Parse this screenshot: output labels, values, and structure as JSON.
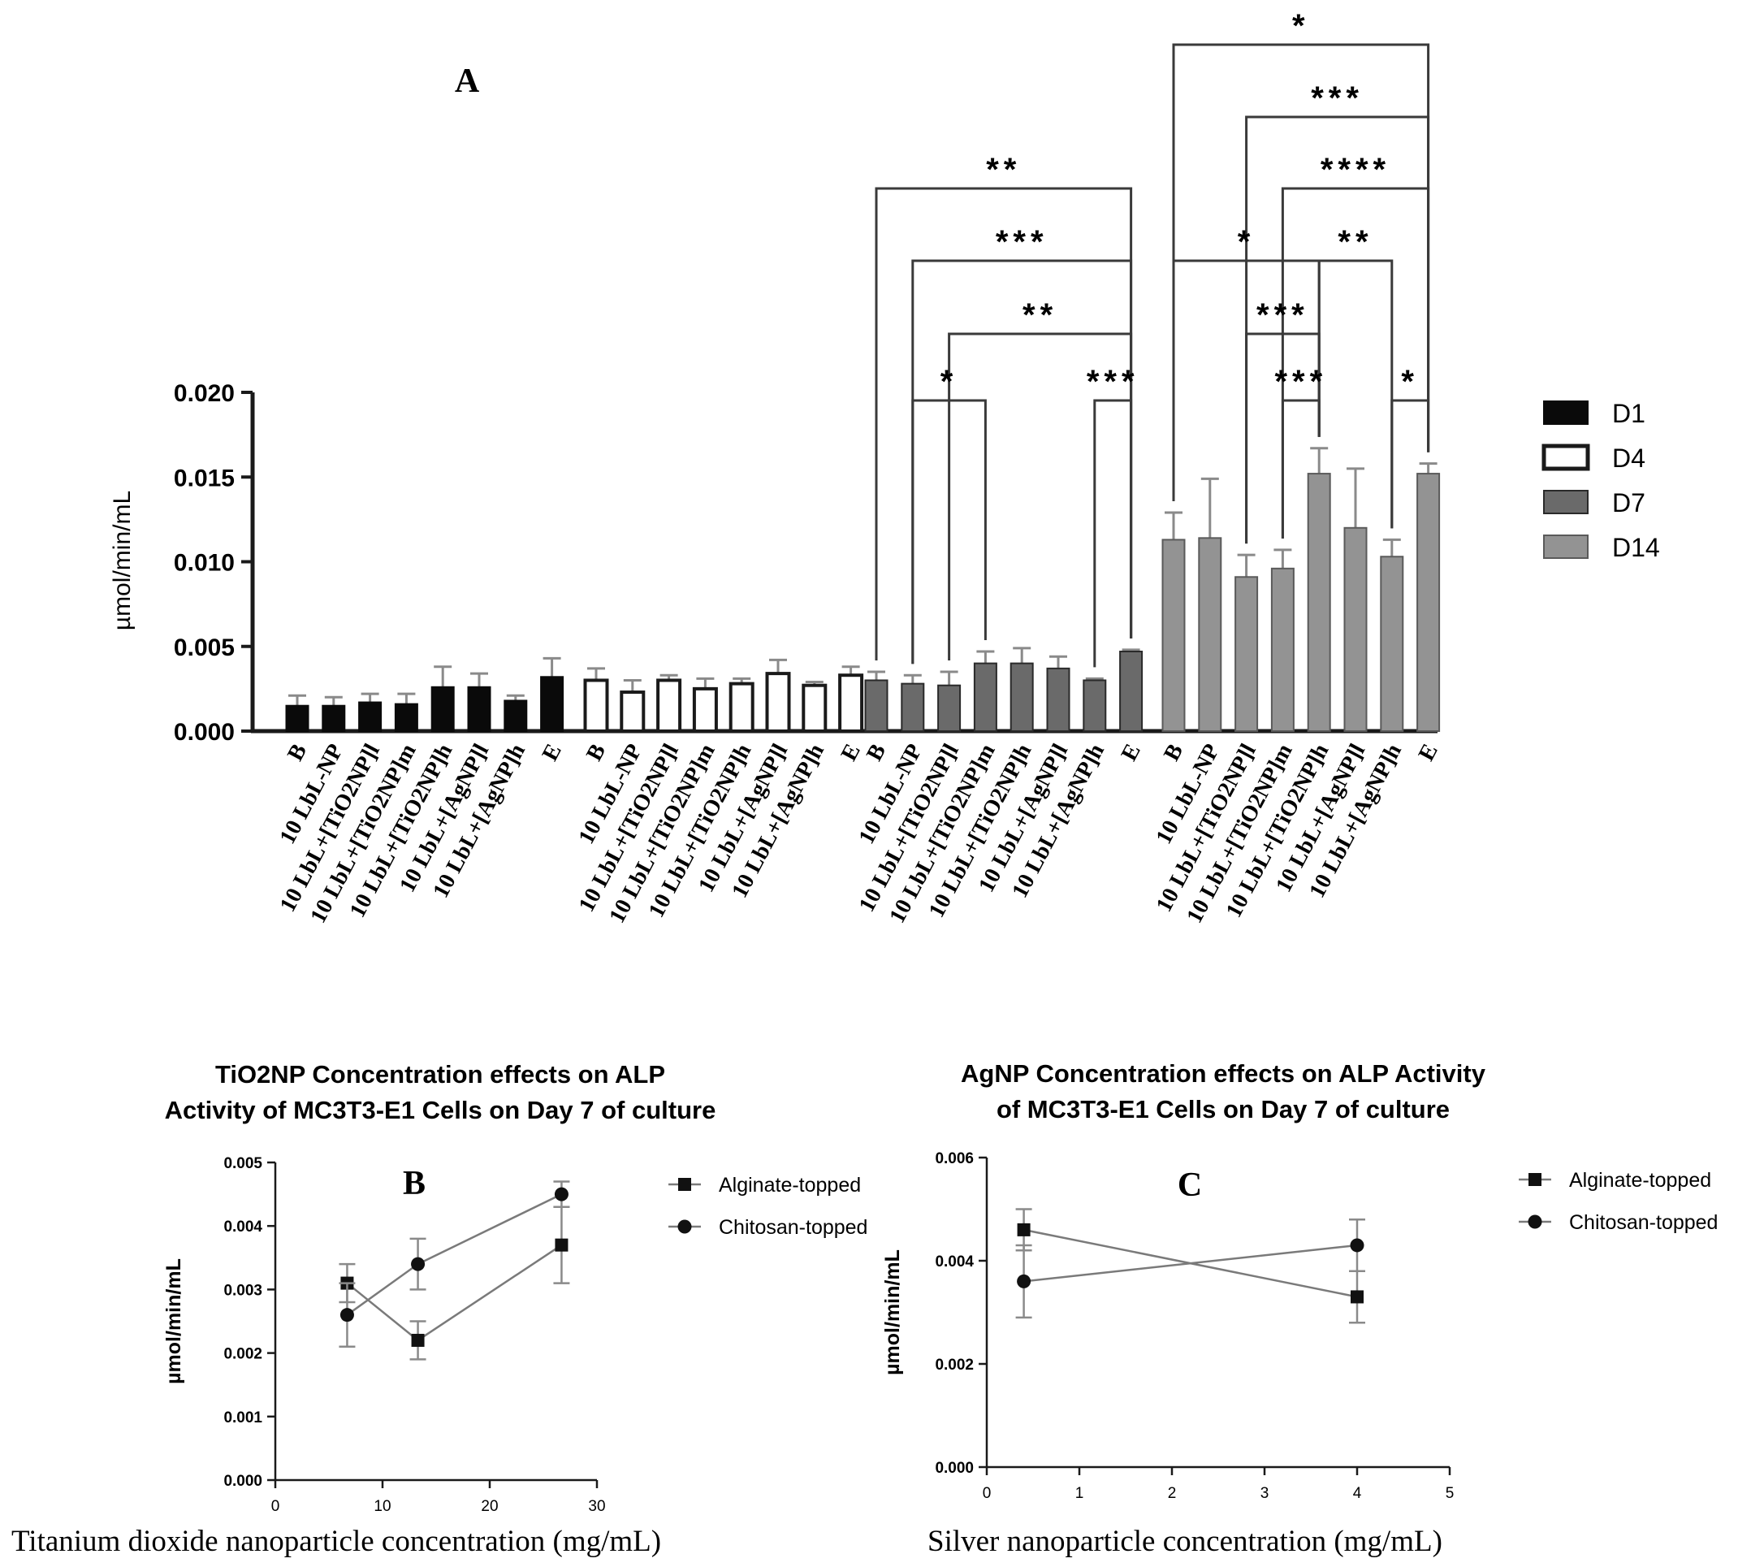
{
  "colors": {
    "d1": "#0a0a0a",
    "d4": "#ffffff",
    "d7": "#6a6a6a",
    "d14": "#939393",
    "axis": "#1a1a1a",
    "line": "#7a7a7a",
    "error": "#8a8a8a"
  },
  "chart_data": [
    {
      "id": "A",
      "type": "bar",
      "panel_label": "A",
      "ylabel": "µmol/min/mL",
      "ylim": [
        0,
        0.02
      ],
      "yticks": [
        "0.000",
        "0.005",
        "0.010",
        "0.015",
        "0.020"
      ],
      "ytick_values": [
        0,
        0.005,
        0.01,
        0.015,
        0.02
      ],
      "legend": [
        "D1",
        "D4",
        "D7",
        "D14"
      ],
      "legend_position": "right",
      "categories": [
        "B",
        "10 LbL-NP",
        "10 LbL+[TiO2NP]l",
        "10 LbL+[TiO2NP]m",
        "10 LbL+[TiO2NP]h",
        "10 LbL+[AgNP]l",
        "10 LbL+[AgNP]h",
        "E"
      ],
      "series": [
        {
          "name": "D1",
          "values": [
            0.0015,
            0.0015,
            0.0017,
            0.0016,
            0.0026,
            0.0026,
            0.0018,
            0.0032
          ],
          "errors": [
            0.0006,
            0.0005,
            0.0005,
            0.0006,
            0.0012,
            0.0008,
            0.0003,
            0.0011
          ]
        },
        {
          "name": "D4",
          "values": [
            0.003,
            0.0023,
            0.003,
            0.0025,
            0.0028,
            0.0034,
            0.0027,
            0.0033
          ],
          "errors": [
            0.0007,
            0.0007,
            0.0003,
            0.0006,
            0.0003,
            0.0008,
            0.0002,
            0.0005
          ]
        },
        {
          "name": "D7",
          "values": [
            0.003,
            0.0028,
            0.0027,
            0.004,
            0.004,
            0.0037,
            0.003,
            0.0047
          ],
          "errors": [
            0.0005,
            0.0005,
            0.0008,
            0.0007,
            0.0009,
            0.0007,
            0.0001,
            0.0001
          ]
        },
        {
          "name": "D14",
          "values": [
            0.0113,
            0.0114,
            0.0091,
            0.0096,
            0.0152,
            0.012,
            0.0103,
            0.0152
          ],
          "errors": [
            0.0016,
            0.0035,
            0.0013,
            0.0011,
            0.0015,
            0.0035,
            0.001,
            0.0006
          ]
        }
      ],
      "significance": [
        {
          "series": "D7",
          "from": 0,
          "to": 7,
          "stars": "**"
        },
        {
          "series": "D7",
          "from": 1,
          "to": 7,
          "stars": "***"
        },
        {
          "series": "D7",
          "from": 2,
          "to": 7,
          "stars": "**"
        },
        {
          "series": "D7",
          "from": 1,
          "to": 3,
          "stars": "*"
        },
        {
          "series": "D7",
          "from": 6,
          "to": 7,
          "stars": "***"
        },
        {
          "series": "D14",
          "from": 0,
          "to": 7,
          "stars": "*"
        },
        {
          "series": "D14",
          "from": 2,
          "to": 7,
          "stars": "***"
        },
        {
          "series": "D14",
          "from": 3,
          "to": 7,
          "stars": "****"
        },
        {
          "series": "D14",
          "from": 0,
          "to": 4,
          "stars": "*"
        },
        {
          "series": "D14",
          "from": 4,
          "to": 6,
          "stars": "**"
        },
        {
          "series": "D14",
          "from": 2,
          "to": 4,
          "stars": "***"
        },
        {
          "series": "D14",
          "from": 3,
          "to": 4,
          "stars": "***"
        },
        {
          "series": "D14",
          "from": 6,
          "to": 7,
          "stars": "*"
        }
      ]
    },
    {
      "id": "B",
      "type": "line",
      "panel_label": "B",
      "title": [
        "TiO2NP Concentration effects on ALP",
        "Activity of MC3T3-E1 Cells on Day 7 of culture"
      ],
      "ylabel": "µmol/min/mL",
      "xlabel": "Titanium dioxide nanoparticle concentration (mg/mL)",
      "xlim": [
        0,
        30
      ],
      "ylim": [
        0,
        0.005
      ],
      "xticks": [
        "0",
        "10",
        "20",
        "30"
      ],
      "xtick_values": [
        0,
        10,
        20,
        30
      ],
      "yticks": [
        "0.000",
        "0.001",
        "0.002",
        "0.003",
        "0.004",
        "0.005"
      ],
      "ytick_values": [
        0,
        0.001,
        0.002,
        0.003,
        0.004,
        0.005
      ],
      "legend": [
        "Alginate-topped",
        "Chitosan-topped"
      ],
      "legend_position": "right",
      "series": [
        {
          "name": "Alginate-topped",
          "marker": "square",
          "x": [
            6.7,
            13.3,
            26.7
          ],
          "values": [
            0.0031,
            0.0022,
            0.0037
          ],
          "errors": [
            0.0003,
            0.0003,
            0.0006
          ]
        },
        {
          "name": "Chitosan-topped",
          "marker": "circle",
          "x": [
            6.7,
            13.3,
            26.7
          ],
          "values": [
            0.0026,
            0.0034,
            0.0045
          ],
          "errors": [
            0.0005,
            0.0004,
            0.0002
          ]
        }
      ]
    },
    {
      "id": "C",
      "type": "line",
      "panel_label": "C",
      "title": [
        "AgNP Concentration effects on ALP Activity",
        "of MC3T3-E1 Cells on Day 7 of culture"
      ],
      "ylabel": "µmol/min/mL",
      "xlabel": "Silver nanoparticle concentration (mg/mL)",
      "xlim": [
        0,
        5
      ],
      "ylim": [
        0,
        0.006
      ],
      "xticks": [
        "0",
        "1",
        "2",
        "3",
        "4",
        "5"
      ],
      "xtick_values": [
        0,
        1,
        2,
        3,
        4,
        5
      ],
      "yticks": [
        "0.000",
        "0.002",
        "0.004",
        "0.006"
      ],
      "ytick_values": [
        0,
        0.002,
        0.004,
        0.006
      ],
      "legend": [
        "Alginate-topped",
        "Chitosan-topped"
      ],
      "legend_position": "right",
      "series": [
        {
          "name": "Alginate-topped",
          "marker": "square",
          "x": [
            0.4,
            4
          ],
          "values": [
            0.0046,
            0.0033
          ],
          "errors": [
            0.0004,
            0.0005
          ]
        },
        {
          "name": "Chitosan-topped",
          "marker": "circle",
          "x": [
            0.4,
            4
          ],
          "values": [
            0.0036,
            0.0043
          ],
          "errors": [
            0.0007,
            0.0005
          ]
        }
      ]
    }
  ]
}
